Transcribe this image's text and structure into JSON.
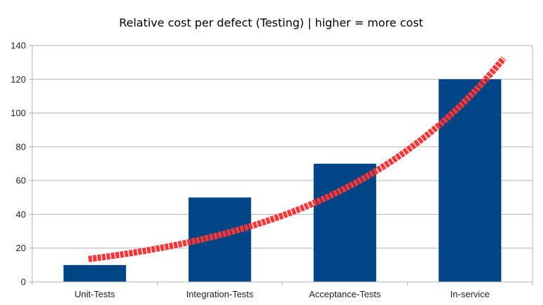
{
  "chart_data": {
    "type": "bar",
    "title": "Relative cost per defect (Testing) | higher = more cost",
    "xlabel": "",
    "ylabel": "",
    "categories": [
      "Unit-Tests",
      "Integration-Tests",
      "Acceptance-Tests",
      "In-service"
    ],
    "values": [
      10,
      50,
      70,
      120
    ],
    "ylim": [
      0,
      140
    ],
    "yticks": [
      0,
      20,
      40,
      60,
      80,
      100,
      120,
      140
    ],
    "grid": true,
    "legend": "none",
    "bar_color": "#004586",
    "trend_line": {
      "color": "#ff3333",
      "style": "dashed",
      "x": [
        "Unit-Tests",
        "Integration-Tests",
        "Acceptance-Tests",
        "In-service"
      ],
      "values": [
        14,
        30,
        57,
        110
      ]
    }
  }
}
